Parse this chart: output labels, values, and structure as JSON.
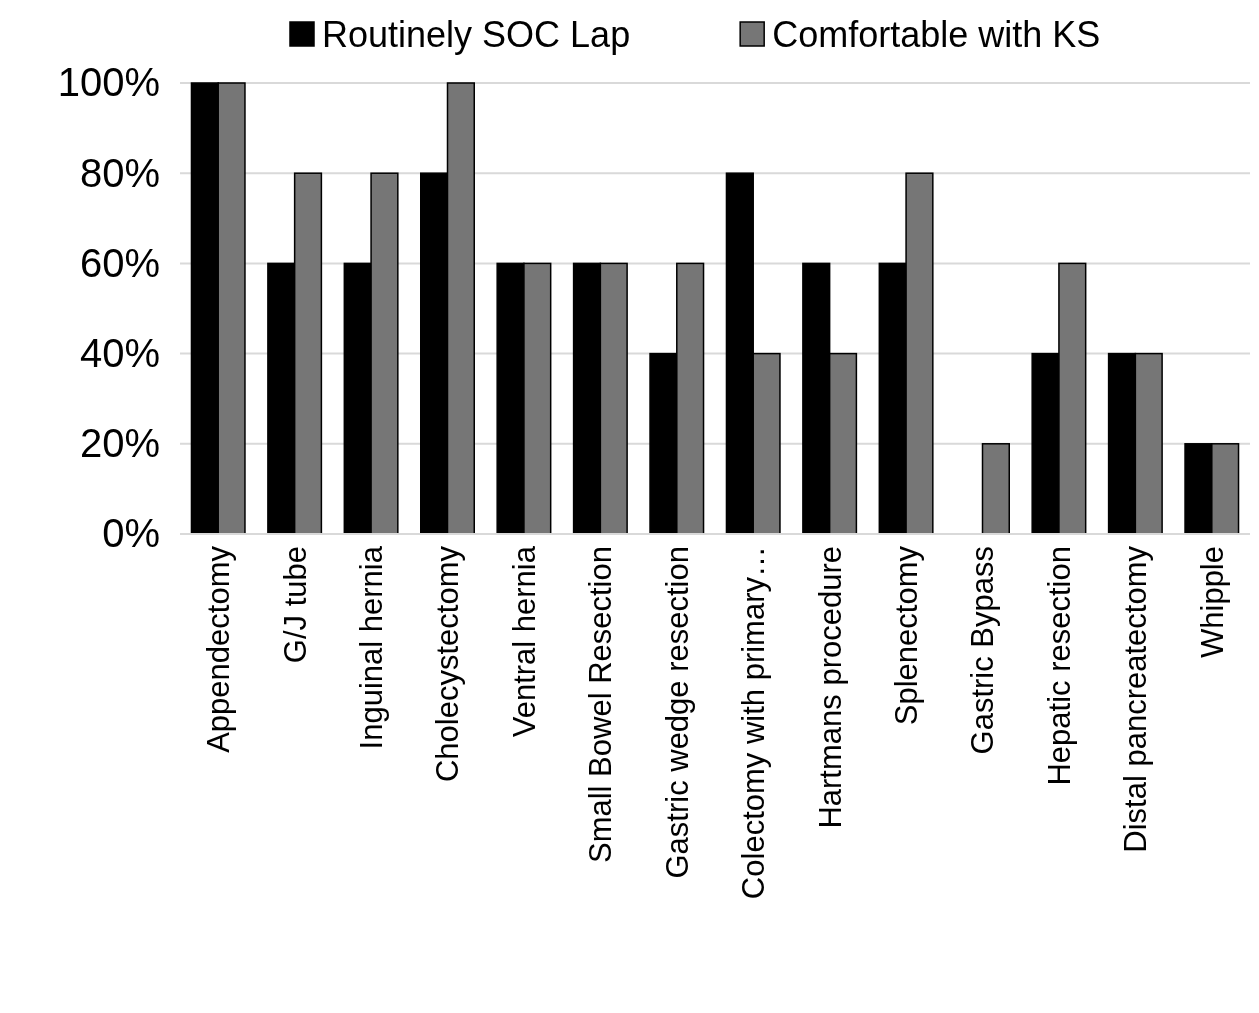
{
  "chart_data": {
    "type": "bar",
    "categories": [
      "Appendectomy",
      "G/J tube",
      "Inguinal hernia",
      "Cholecystectomy",
      "Ventral hernia",
      "Small Bowel Resection",
      "Gastric wedge resection",
      "Colectomy with primary…",
      "Hartmans procedure",
      "Splenectomy",
      "Gastric Bypass",
      "Hepatic resection",
      "Distal pancreatectomy",
      "Whipple"
    ],
    "series": [
      {
        "name": "Routinely SOC Lap",
        "color": "#000000",
        "values": [
          100,
          60,
          60,
          80,
          60,
          60,
          40,
          80,
          60,
          60,
          0,
          40,
          40,
          20
        ]
      },
      {
        "name": "Comfortable with KS",
        "color": "#767676",
        "values": [
          100,
          80,
          80,
          100,
          60,
          60,
          60,
          40,
          40,
          80,
          20,
          60,
          40,
          20
        ]
      }
    ],
    "ylim": [
      0,
      100
    ],
    "yticks": [
      {
        "value": 0,
        "label": "0%"
      },
      {
        "value": 20,
        "label": "20%"
      },
      {
        "value": 40,
        "label": "40%"
      },
      {
        "value": 60,
        "label": "60%"
      },
      {
        "value": 80,
        "label": "80%"
      },
      {
        "value": 100,
        "label": "100%"
      }
    ],
    "grid": "y",
    "legend": "top"
  }
}
